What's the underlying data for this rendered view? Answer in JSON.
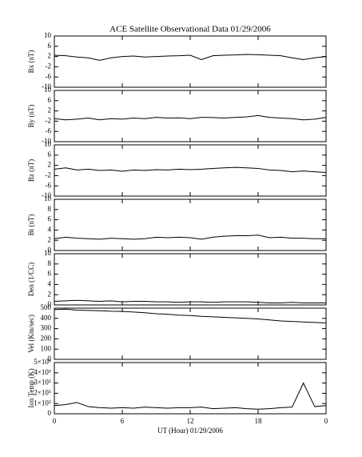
{
  "chart_data": [
    {
      "type": "line",
      "title": "ACE Satellite Observational Data   01/29/2006",
      "ylabel": "Bx (nT)",
      "color": "#000000",
      "x": [
        0,
        1,
        2,
        3,
        4,
        5,
        6,
        7,
        8,
        9,
        10,
        11,
        12,
        13,
        14,
        15,
        16,
        17,
        18,
        19,
        20,
        21,
        22,
        23,
        24
      ],
      "values": [
        2.5,
        2.3,
        1.8,
        1.5,
        0.5,
        1.5,
        2,
        2.2,
        1.8,
        2,
        2.2,
        2.3,
        2.5,
        0.8,
        2.3,
        2.5,
        2.6,
        2.8,
        2.7,
        2.5,
        2.3,
        1.5,
        0.8,
        1.5,
        2.0
      ],
      "xlim": [
        0,
        24
      ],
      "ylim": [
        -10,
        10
      ],
      "yticks": [
        10,
        6,
        2,
        -2,
        -6,
        -10
      ]
    },
    {
      "type": "line",
      "ylabel": "By (nT)",
      "color": "#000000",
      "x": [
        0,
        1,
        2,
        3,
        4,
        5,
        6,
        7,
        8,
        9,
        10,
        11,
        12,
        13,
        14,
        15,
        16,
        17,
        18,
        19,
        20,
        21,
        22,
        23,
        24
      ],
      "values": [
        -1,
        -1.5,
        -1.2,
        -0.8,
        -1.5,
        -1,
        -1.2,
        -0.8,
        -1,
        -0.5,
        -0.8,
        -0.7,
        -1,
        -0.5,
        -0.6,
        -0.8,
        -0.5,
        -0.3,
        0.2,
        -0.5,
        -0.8,
        -1,
        -1.5,
        -1.2,
        -0.5
      ],
      "xlim": [
        0,
        24
      ],
      "ylim": [
        -10,
        10
      ],
      "yticks": [
        10,
        6,
        2,
        -2,
        -6,
        -10
      ]
    },
    {
      "type": "line",
      "ylabel": "Bz (nT)",
      "color": "#000000",
      "x": [
        0,
        1,
        2,
        3,
        4,
        5,
        6,
        7,
        8,
        9,
        10,
        11,
        12,
        13,
        14,
        15,
        16,
        17,
        18,
        19,
        20,
        21,
        22,
        23,
        24
      ],
      "values": [
        0.5,
        1,
        0.2,
        0.5,
        0,
        0.2,
        -0.3,
        0.2,
        0,
        0.3,
        0.2,
        0.5,
        0.3,
        0.5,
        0.8,
        1,
        1.2,
        1,
        0.8,
        0.2,
        0,
        -0.5,
        -0.2,
        -0.5,
        -0.8
      ],
      "xlim": [
        0,
        24
      ],
      "ylim": [
        -10,
        10
      ],
      "yticks": [
        10,
        6,
        2,
        -2,
        -6,
        -10
      ]
    },
    {
      "type": "line",
      "ylabel": "Bt (nT)",
      "color": "#000000",
      "x": [
        0,
        1,
        2,
        3,
        4,
        5,
        6,
        7,
        8,
        9,
        10,
        11,
        12,
        13,
        14,
        15,
        16,
        17,
        18,
        19,
        20,
        21,
        22,
        23,
        24
      ],
      "values": [
        2.3,
        2.6,
        2.4,
        2.3,
        2.2,
        2.4,
        2.3,
        2.2,
        2.3,
        2.6,
        2.5,
        2.6,
        2.5,
        2.2,
        2.6,
        2.8,
        2.9,
        2.9,
        3.0,
        2.5,
        2.6,
        2.4,
        2.4,
        2.3,
        2.3
      ],
      "xlim": [
        0,
        24
      ],
      "ylim": [
        0,
        10
      ],
      "yticks": [
        10,
        8,
        6,
        4,
        2,
        0
      ]
    },
    {
      "type": "line",
      "ylabel": "Den (1/CC)",
      "color": "#000000",
      "x": [
        0,
        1,
        2,
        3,
        4,
        5,
        6,
        7,
        8,
        9,
        10,
        11,
        12,
        13,
        14,
        15,
        16,
        17,
        18,
        19,
        20,
        21,
        22,
        23,
        24
      ],
      "values": [
        0.7,
        0.8,
        0.9,
        0.8,
        0.7,
        0.8,
        0.6,
        0.7,
        0.7,
        0.6,
        0.6,
        0.5,
        0.6,
        0.6,
        0.5,
        0.6,
        0.6,
        0.6,
        0.5,
        0.4,
        0.4,
        0.5,
        0.4,
        0.4,
        0.4
      ],
      "xlim": [
        0,
        24
      ],
      "ylim": [
        0,
        10
      ],
      "yticks": [
        10,
        8,
        6,
        4,
        2,
        0
      ]
    },
    {
      "type": "line",
      "ylabel": "Vel (Km/sec)",
      "color": "#000000",
      "x": [
        0,
        1,
        2,
        3,
        4,
        5,
        6,
        7,
        8,
        9,
        10,
        11,
        12,
        13,
        14,
        15,
        16,
        17,
        18,
        19,
        20,
        21,
        22,
        23,
        24
      ],
      "values": [
        485,
        490,
        480,
        478,
        475,
        470,
        468,
        462,
        455,
        445,
        440,
        432,
        428,
        420,
        415,
        410,
        405,
        400,
        395,
        385,
        375,
        370,
        365,
        360,
        355
      ],
      "xlim": [
        0,
        24
      ],
      "ylim": [
        0,
        500
      ],
      "yticks": [
        500,
        400,
        300,
        200,
        100,
        0
      ]
    },
    {
      "type": "line",
      "ylabel": "Ion Temp (K)",
      "xlabel": "UT (Hour)  01/29/2006",
      "color": "#000000",
      "x": [
        0,
        1,
        2,
        3,
        4,
        5,
        6,
        7,
        8,
        9,
        10,
        11,
        12,
        13,
        14,
        15,
        16,
        17,
        18,
        19,
        20,
        21,
        22,
        23,
        24
      ],
      "values": [
        80000,
        90000,
        110000,
        70000,
        60000,
        55000,
        60000,
        55000,
        65000,
        60000,
        55000,
        60000,
        60000,
        65000,
        50000,
        55000,
        60000,
        50000,
        45000,
        50000,
        60000,
        65000,
        300000,
        70000,
        80000
      ],
      "xlim": [
        0,
        24
      ],
      "ylim": [
        0,
        500000
      ],
      "yticks": [
        {
          "value": 500000,
          "label": "5×10⁵"
        },
        {
          "value": 400000,
          "label": "4×10⁵"
        },
        {
          "value": 300000,
          "label": "3×10⁵"
        },
        {
          "value": 200000,
          "label": "2×10⁵"
        },
        {
          "value": 100000,
          "label": "1×10⁵"
        },
        0
      ],
      "xticks": [
        0,
        6,
        12,
        18,
        {
          "value": 24,
          "label": "0"
        }
      ]
    }
  ]
}
